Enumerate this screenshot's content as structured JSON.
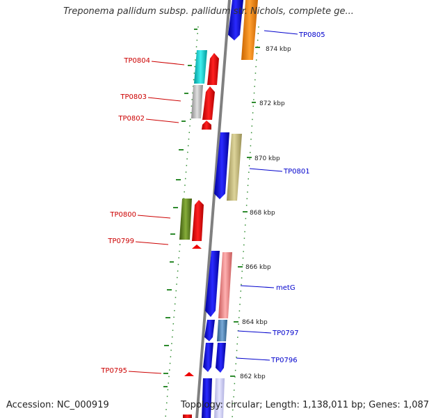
{
  "title": "Treponema pallidum subsp. pallidum str. Nichols, complete ge...",
  "footer": {
    "accession": "Accession: NC_000919",
    "summary": "Topology: circular; Length: 1,138,011 bp; Genes: 1,087"
  },
  "colors": {
    "backbone": "#808080",
    "tick": "#2e8b2e",
    "forward_label": "#0000cc",
    "reverse_label": "#cc0000"
  },
  "scale_labels": [
    "874 kbp",
    "872 kbp",
    "870 kbp",
    "868 kbp",
    "866 kbp",
    "864 kbp",
    "862 kbp"
  ],
  "genes": [
    {
      "name": "TP0805",
      "strand": "forward",
      "color": "#ff8c00",
      "color_bottom": "#ff8c00",
      "labeled": true
    },
    {
      "name": "TP0804",
      "strand": "reverse",
      "color": "#00c8c8",
      "labeled": true
    },
    {
      "name": "TP0803",
      "strand": "reverse",
      "color": "#c0c0c0",
      "labeled": true
    },
    {
      "name": "TP0802",
      "strand": "reverse",
      "color": "#ff0000",
      "labeled": true
    },
    {
      "name": "TP0801",
      "strand": "forward",
      "color": "#c8be7a",
      "labeled": true
    },
    {
      "name": "TP0800",
      "strand": "reverse",
      "color": "#6b8e23",
      "labeled": true
    },
    {
      "name": "TP0799",
      "strand": "reverse",
      "color": "#ff0000",
      "labeled": true
    },
    {
      "name": "metG",
      "strand": "forward",
      "color": "#f08080",
      "labeled": true
    },
    {
      "name": "TP0797",
      "strand": "forward",
      "color": "#4682b4",
      "labeled": true
    },
    {
      "name": "TP0796",
      "strand": "forward",
      "color": "#0000ff",
      "labeled": true
    },
    {
      "name": "TP0795",
      "strand": "reverse",
      "color": "#ff0000",
      "labeled": true
    }
  ]
}
